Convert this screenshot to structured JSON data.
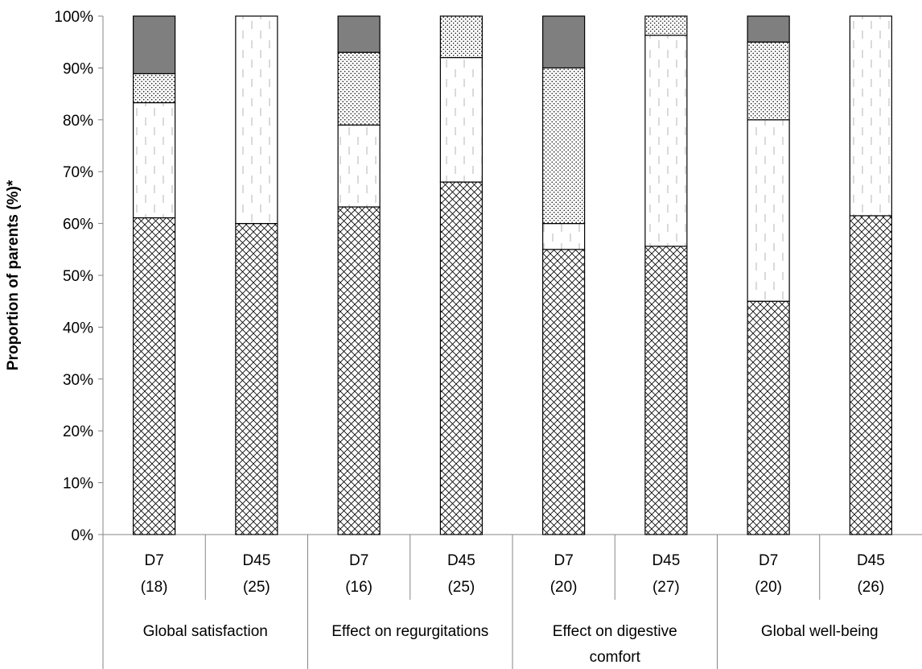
{
  "chart_data": {
    "type": "bar",
    "stacked": true,
    "ylabel": "Proportion of parents (%)*",
    "ylim": [
      0,
      100
    ],
    "yticks": [
      "0%",
      "10%",
      "20%",
      "30%",
      "40%",
      "50%",
      "60%",
      "70%",
      "80%",
      "90%",
      "100%"
    ],
    "grid": false,
    "legend": "none",
    "categories": [
      {
        "top": "D7",
        "bottom": "(18)"
      },
      {
        "top": "D45",
        "bottom": "(25)"
      },
      {
        "top": "D7",
        "bottom": "(16)"
      },
      {
        "top": "D45",
        "bottom": "(25)"
      },
      {
        "top": "D7",
        "bottom": "(20)"
      },
      {
        "top": "D45",
        "bottom": "(27)"
      },
      {
        "top": "D7",
        "bottom": "(20)"
      },
      {
        "top": "D45",
        "bottom": "(26)"
      }
    ],
    "groups": [
      {
        "lines": [
          "Global satisfaction"
        ],
        "span": [
          0,
          1
        ]
      },
      {
        "lines": [
          "Effect on regurgitations"
        ],
        "span": [
          2,
          3
        ]
      },
      {
        "lines": [
          "Effect on digestive",
          "comfort"
        ],
        "span": [
          4,
          5
        ]
      },
      {
        "lines": [
          "Global well-being"
        ],
        "span": [
          6,
          7
        ]
      }
    ],
    "series": [
      {
        "pattern": "crosshatch",
        "values": [
          61.1,
          60.0,
          63.2,
          68.0,
          55.0,
          55.6,
          45.0,
          61.5
        ]
      },
      {
        "pattern": "dashed",
        "values": [
          22.2,
          40.0,
          15.8,
          24.0,
          5.0,
          40.7,
          35.0,
          38.5
        ]
      },
      {
        "pattern": "dotted",
        "values": [
          5.6,
          0,
          14.0,
          8.0,
          30.0,
          3.7,
          15.0,
          0
        ]
      },
      {
        "pattern": "solid-gray",
        "color": "#7f7f7f",
        "values": [
          11.1,
          0,
          7.0,
          0,
          10.0,
          0,
          5.0,
          0
        ]
      }
    ]
  }
}
